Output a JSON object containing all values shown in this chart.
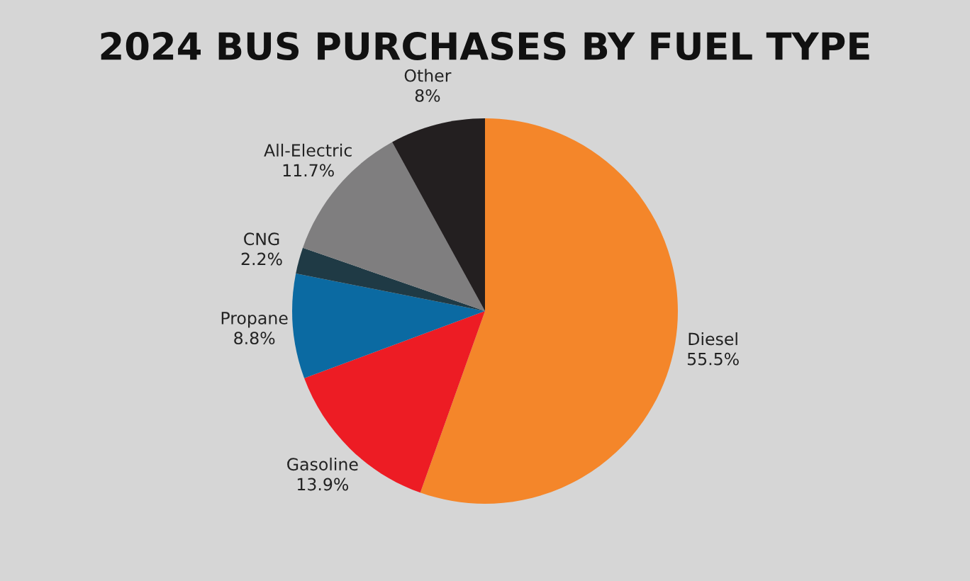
{
  "chart_data": {
    "type": "pie",
    "title": "2024 BUS PURCHASES BY FUEL TYPE",
    "categories": [
      "Diesel",
      "Gasoline",
      "Propane",
      "CNG",
      "All-Electric",
      "Other"
    ],
    "values": [
      55.5,
      13.9,
      8.8,
      2.2,
      11.7,
      8
    ],
    "value_labels": [
      "55.5%",
      "13.9%",
      "8.8%",
      "2.2%",
      "11.7%",
      "8%"
    ],
    "colors": [
      "#f4862a",
      "#ed1c24",
      "#0b6aa2",
      "#1f3a45",
      "#7f7e7f",
      "#231f20"
    ],
    "legend": false
  }
}
